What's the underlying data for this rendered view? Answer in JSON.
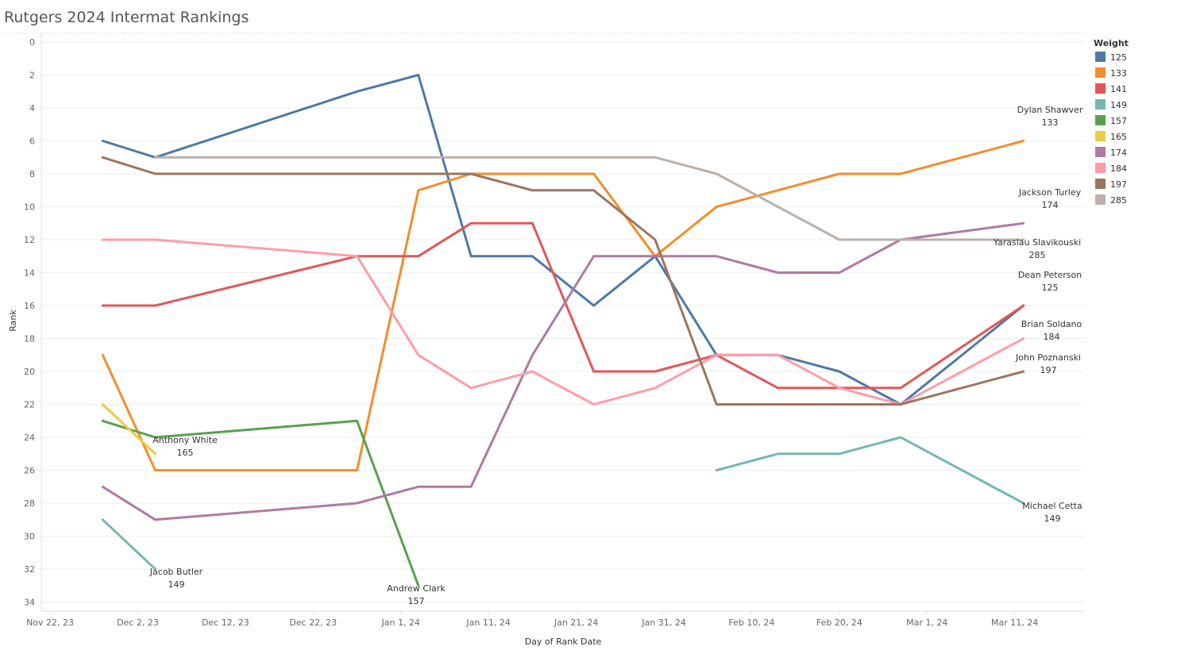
{
  "chart_data": {
    "type": "line",
    "title": "Rutgers 2024 Intermat Rankings",
    "xlabel": "Day of Rank Date",
    "ylabel": "Rank",
    "x_ticks": [
      "Nov 22, 23",
      "Dec 2, 23",
      "Dec 12, 23",
      "Dec 22, 23",
      "Jan 1, 24",
      "Jan 11, 24",
      "Jan 21, 24",
      "Jan 31, 24",
      "Feb 10, 24",
      "Feb 20, 24",
      "Mar 1, 24",
      "Mar 11, 24"
    ],
    "x_range": [
      "2023-11-21",
      "2024-03-19"
    ],
    "y_ticks": [
      0,
      2,
      4,
      6,
      8,
      10,
      12,
      14,
      16,
      18,
      20,
      22,
      24,
      26,
      28,
      30,
      32,
      34
    ],
    "ylim": [
      0,
      35
    ],
    "y_reversed": true,
    "grid": "horizontal",
    "legend": {
      "title": "Weight",
      "position": "right"
    },
    "series": [
      {
        "name": "125",
        "color": "#4e79a7",
        "points": [
          [
            "2023-11-28",
            6
          ],
          [
            "2023-12-04",
            7
          ],
          [
            "2023-12-27",
            3
          ],
          [
            "2024-01-03",
            2
          ],
          [
            "2024-01-09",
            13
          ],
          [
            "2024-01-16",
            13
          ],
          [
            "2024-01-23",
            16
          ],
          [
            "2024-01-30",
            13
          ],
          [
            "2024-02-06",
            19
          ],
          [
            "2024-02-13",
            19
          ],
          [
            "2024-02-20",
            20
          ],
          [
            "2024-02-27",
            22
          ],
          [
            "2024-03-12",
            16
          ]
        ]
      },
      {
        "name": "133",
        "color": "#f28e2b",
        "points": [
          [
            "2023-11-28",
            19
          ],
          [
            "2023-12-04",
            26
          ],
          [
            "2023-12-27",
            26
          ],
          [
            "2024-01-03",
            9
          ],
          [
            "2024-01-09",
            8
          ],
          [
            "2024-01-16",
            8
          ],
          [
            "2024-01-23",
            8
          ],
          [
            "2024-01-30",
            13
          ],
          [
            "2024-02-06",
            10
          ],
          [
            "2024-02-13",
            9
          ],
          [
            "2024-02-20",
            8
          ],
          [
            "2024-02-27",
            8
          ],
          [
            "2024-03-12",
            6
          ]
        ]
      },
      {
        "name": "141",
        "color": "#e15759",
        "points": [
          [
            "2023-11-28",
            16
          ],
          [
            "2023-12-04",
            16
          ],
          [
            "2023-12-27",
            13
          ],
          [
            "2024-01-03",
            13
          ],
          [
            "2024-01-09",
            11
          ],
          [
            "2024-01-16",
            11
          ],
          [
            "2024-01-23",
            20
          ],
          [
            "2024-01-30",
            20
          ],
          [
            "2024-02-06",
            19
          ],
          [
            "2024-02-13",
            21
          ],
          [
            "2024-02-20",
            21
          ],
          [
            "2024-02-27",
            21
          ],
          [
            "2024-03-12",
            16
          ]
        ]
      },
      {
        "name": "149",
        "color": "#76b7b2",
        "points": [
          [
            "2023-11-28",
            29
          ],
          [
            "2023-12-04",
            32
          ]
        ]
      },
      {
        "name": "149",
        "color": "#76b7b2",
        "points": [
          [
            "2024-02-06",
            26
          ],
          [
            "2024-02-13",
            25
          ],
          [
            "2024-02-20",
            25
          ],
          [
            "2024-02-27",
            24
          ],
          [
            "2024-03-12",
            28
          ]
        ]
      },
      {
        "name": "157",
        "color": "#59a14f",
        "points": [
          [
            "2023-11-28",
            23
          ],
          [
            "2023-12-04",
            24
          ],
          [
            "2023-12-27",
            23
          ],
          [
            "2024-01-03",
            33
          ]
        ]
      },
      {
        "name": "165",
        "color": "#edc948",
        "points": [
          [
            "2023-11-28",
            22
          ],
          [
            "2023-12-04",
            25
          ]
        ]
      },
      {
        "name": "174",
        "color": "#b07aa1",
        "points": [
          [
            "2023-11-28",
            27
          ],
          [
            "2023-12-04",
            29
          ],
          [
            "2023-12-27",
            28
          ],
          [
            "2024-01-03",
            27
          ],
          [
            "2024-01-09",
            27
          ],
          [
            "2024-01-16",
            19
          ],
          [
            "2024-01-23",
            13
          ],
          [
            "2024-01-30",
            13
          ],
          [
            "2024-02-06",
            13
          ],
          [
            "2024-02-13",
            14
          ],
          [
            "2024-02-20",
            14
          ],
          [
            "2024-02-27",
            12
          ],
          [
            "2024-03-12",
            11
          ]
        ]
      },
      {
        "name": "184",
        "color": "#ff9da7",
        "points": [
          [
            "2023-11-28",
            12
          ],
          [
            "2023-12-04",
            12
          ],
          [
            "2023-12-27",
            13
          ],
          [
            "2024-01-03",
            19
          ],
          [
            "2024-01-09",
            21
          ],
          [
            "2024-01-16",
            20
          ],
          [
            "2024-01-23",
            22
          ],
          [
            "2024-01-30",
            21
          ],
          [
            "2024-02-06",
            19
          ],
          [
            "2024-02-13",
            19
          ],
          [
            "2024-02-20",
            21
          ],
          [
            "2024-02-27",
            22
          ],
          [
            "2024-03-12",
            18
          ]
        ]
      },
      {
        "name": "197",
        "color": "#9c755f",
        "points": [
          [
            "2023-11-28",
            7
          ],
          [
            "2023-12-04",
            8
          ],
          [
            "2023-12-27",
            8
          ],
          [
            "2024-01-03",
            8
          ],
          [
            "2024-01-09",
            8
          ],
          [
            "2024-01-16",
            9
          ],
          [
            "2024-01-23",
            9
          ],
          [
            "2024-01-30",
            12
          ],
          [
            "2024-02-06",
            22
          ],
          [
            "2024-02-13",
            22
          ],
          [
            "2024-02-20",
            22
          ],
          [
            "2024-02-27",
            22
          ],
          [
            "2024-03-12",
            20
          ]
        ]
      },
      {
        "name": "285",
        "color": "#bab0ac",
        "points": [
          [
            "2023-12-04",
            7
          ],
          [
            "2023-12-27",
            7
          ],
          [
            "2024-01-03",
            7
          ],
          [
            "2024-01-09",
            7
          ],
          [
            "2024-01-16",
            7
          ],
          [
            "2024-01-23",
            7
          ],
          [
            "2024-01-30",
            7
          ],
          [
            "2024-02-06",
            8
          ],
          [
            "2024-02-13",
            10
          ],
          [
            "2024-02-20",
            12
          ],
          [
            "2024-02-27",
            12
          ],
          [
            "2024-03-12",
            12
          ]
        ]
      }
    ],
    "annotations": [
      {
        "name": "Dylan Shawver",
        "weight": "133",
        "at": [
          "2024-03-12",
          6
        ]
      },
      {
        "name": "Jackson Turley",
        "weight": "174",
        "at": [
          "2024-03-12",
          11
        ]
      },
      {
        "name": "Yaraslau Slavikouski",
        "weight": "285",
        "at": [
          "2024-03-12",
          12
        ]
      },
      {
        "name": "Dean Peterson",
        "weight": "125",
        "at": [
          "2024-03-12",
          16
        ]
      },
      {
        "name": "Brian Soldano",
        "weight": "184",
        "at": [
          "2024-03-12",
          18
        ]
      },
      {
        "name": "John Poznanski",
        "weight": "197",
        "at": [
          "2024-03-12",
          20
        ]
      },
      {
        "name": "Michael Cetta",
        "weight": "149",
        "at": [
          "2024-03-12",
          28
        ]
      },
      {
        "name": "Anthony White",
        "weight": "165",
        "at": [
          "2023-12-04",
          25
        ]
      },
      {
        "name": "Jacob Butler",
        "weight": "149",
        "at": [
          "2023-12-04",
          32
        ]
      },
      {
        "name": "Andrew Clark",
        "weight": "157",
        "at": [
          "2024-01-03",
          33
        ]
      }
    ]
  }
}
